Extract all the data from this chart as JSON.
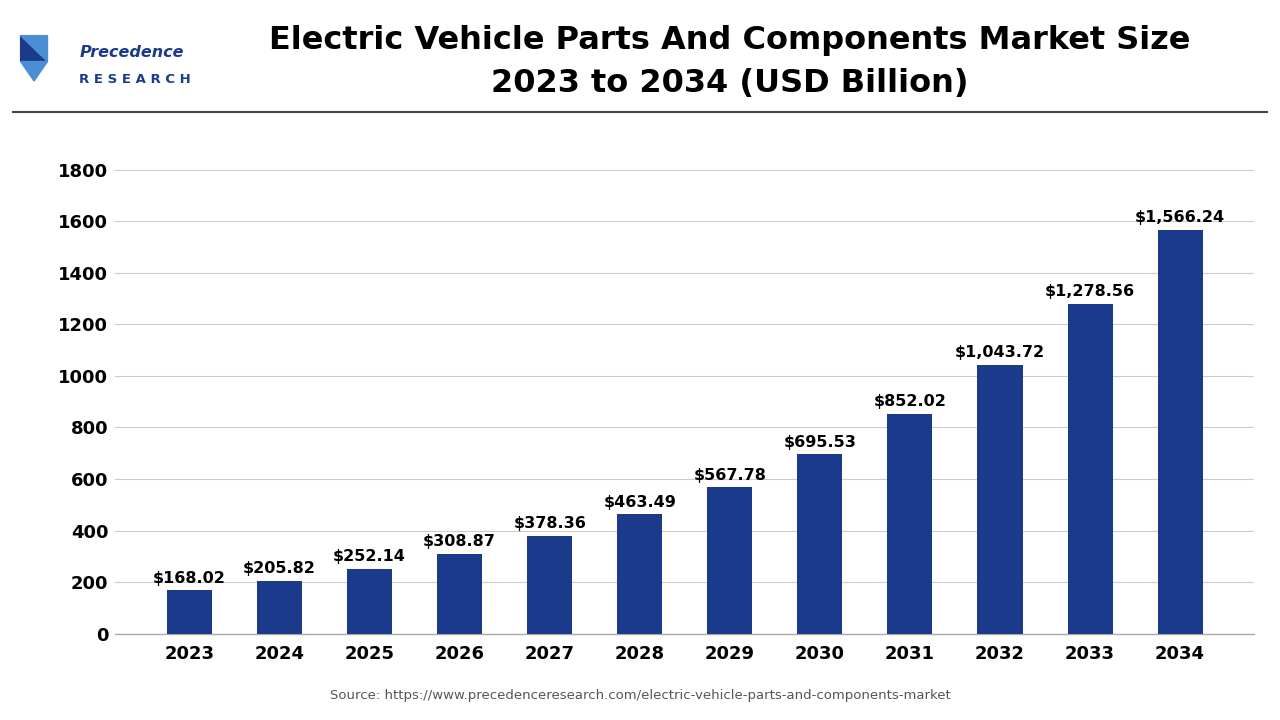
{
  "title_line1": "Electric Vehicle Parts And Components Market Size",
  "title_line2": "2023 to 2034 (USD Billion)",
  "years": [
    2023,
    2024,
    2025,
    2026,
    2027,
    2028,
    2029,
    2030,
    2031,
    2032,
    2033,
    2034
  ],
  "values": [
    168.02,
    205.82,
    252.14,
    308.87,
    378.36,
    463.49,
    567.78,
    695.53,
    852.02,
    1043.72,
    1278.56,
    1566.24
  ],
  "labels": [
    "$168.02",
    "$205.82",
    "$252.14",
    "$308.87",
    "$378.36",
    "$463.49",
    "$567.78",
    "$695.53",
    "$852.02",
    "$1,043.72",
    "$1,278.56",
    "$1,566.24"
  ],
  "bar_color": "#1b3a8c",
  "background_color": "#ffffff",
  "yticks": [
    0,
    200,
    400,
    600,
    800,
    1000,
    1200,
    1400,
    1600,
    1800
  ],
  "ylim": [
    0,
    1900
  ],
  "source_text": "Source: https://www.precedenceresearch.com/electric-vehicle-parts-and-components-market",
  "title_fontsize": 23,
  "tick_fontsize": 13,
  "label_fontsize": 11.5,
  "logo_text1": "Precedence",
  "logo_text2": "R E S E A R C H",
  "logo_color": "#1b3a8c",
  "separator_color": "#444444",
  "grid_color": "#cccccc",
  "source_color": "#555555",
  "bar_width": 0.5
}
